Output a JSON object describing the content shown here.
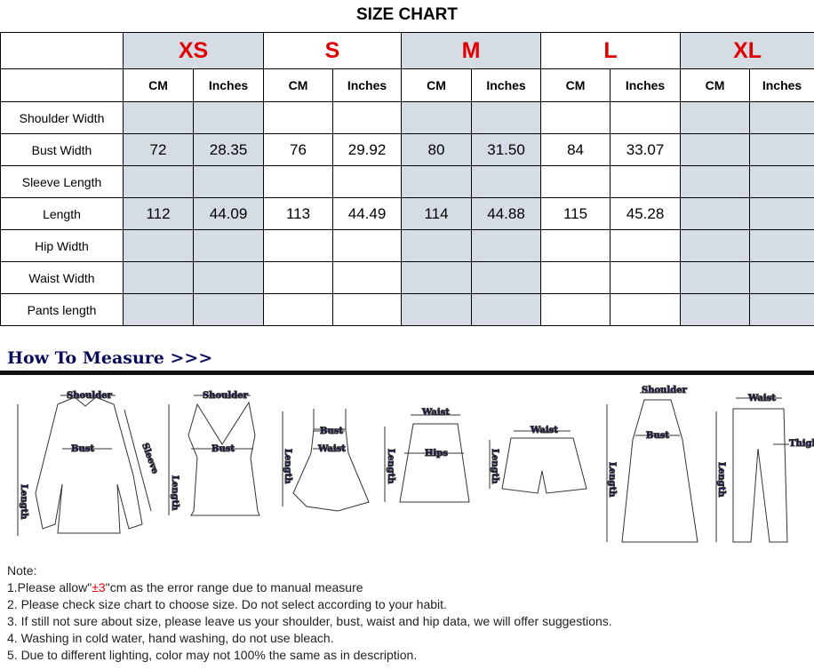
{
  "title": "SIZE CHART",
  "sizes": [
    "XS",
    "S",
    "M",
    "L",
    "XL"
  ],
  "units": [
    "CM",
    "Inches"
  ],
  "gray_color": "#d6dce4",
  "rows": [
    {
      "label": "Shoulder Width",
      "values": [
        "",
        "",
        "",
        "",
        "",
        "",
        "",
        "",
        "",
        ""
      ]
    },
    {
      "label": "Bust Width",
      "values": [
        "72",
        "28.35",
        "76",
        "29.92",
        "80",
        "31.50",
        "84",
        "33.07",
        "",
        ""
      ]
    },
    {
      "label": "Sleeve Length",
      "values": [
        "",
        "",
        "",
        "",
        "",
        "",
        "",
        "",
        "",
        ""
      ]
    },
    {
      "label": "Length",
      "values": [
        "112",
        "44.09",
        "113",
        "44.49",
        "114",
        "44.88",
        "115",
        "45.28",
        "",
        ""
      ]
    },
    {
      "label": "Hip Width",
      "values": [
        "",
        "",
        "",
        "",
        "",
        "",
        "",
        "",
        "",
        ""
      ]
    },
    {
      "label": "Waist Width",
      "values": [
        "",
        "",
        "",
        "",
        "",
        "",
        "",
        "",
        "",
        ""
      ]
    },
    {
      "label": "Pants length",
      "values": [
        "",
        "",
        "",
        "",
        "",
        "",
        "",
        "",
        "",
        ""
      ]
    }
  ],
  "how_to_measure": "How To Measure >>>",
  "illustration_labels": {
    "shoulder": "Shoulder",
    "bust": "Bust",
    "sleeve": "Sleeve",
    "length": "Length",
    "waist": "Waist",
    "hips": "Hips",
    "thigh": "Thigh"
  },
  "notes": {
    "heading": "Note:",
    "n1_pre": "1.Please allow\"",
    "n1_red": "±3",
    "n1_post": "\"cm as the error range due to manual measure",
    "n2": "2. Please check size chart to choose size. Do not select according to your habit.",
    "n3": "3. If still not sure about size, please leave us your shoulder, bust, waist and hip data, we will offer suggestions.",
    "n4": "4. Washing in cold water, hand washing, do not use bleach.",
    "n5": "5. Due to different lighting, color may not 100% the same as in description."
  }
}
